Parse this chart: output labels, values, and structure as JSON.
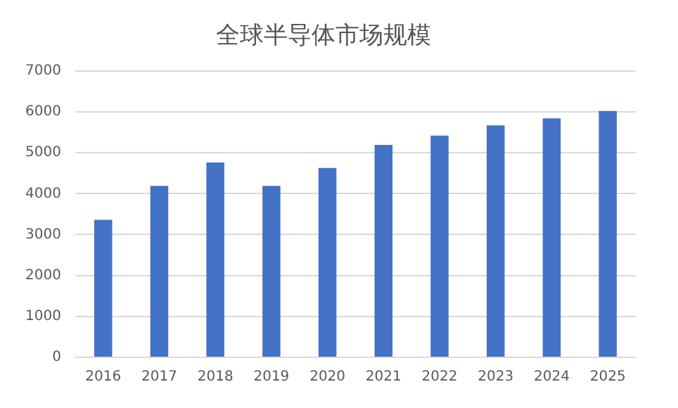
{
  "chart_data": {
    "type": "bar",
    "title": "全球半导体市场规模",
    "categories": [
      "2016",
      "2017",
      "2018",
      "2019",
      "2020",
      "2021",
      "2022",
      "2023",
      "2024",
      "2025"
    ],
    "values": [
      3360,
      4190,
      4760,
      4190,
      4630,
      5190,
      5420,
      5670,
      5840,
      6020
    ],
    "color": "#4472c4",
    "ylim": [
      0,
      7000
    ],
    "yticks": [
      0,
      1000,
      2000,
      3000,
      4000,
      5000,
      6000,
      7000
    ],
    "grid": "y",
    "legend": false
  }
}
